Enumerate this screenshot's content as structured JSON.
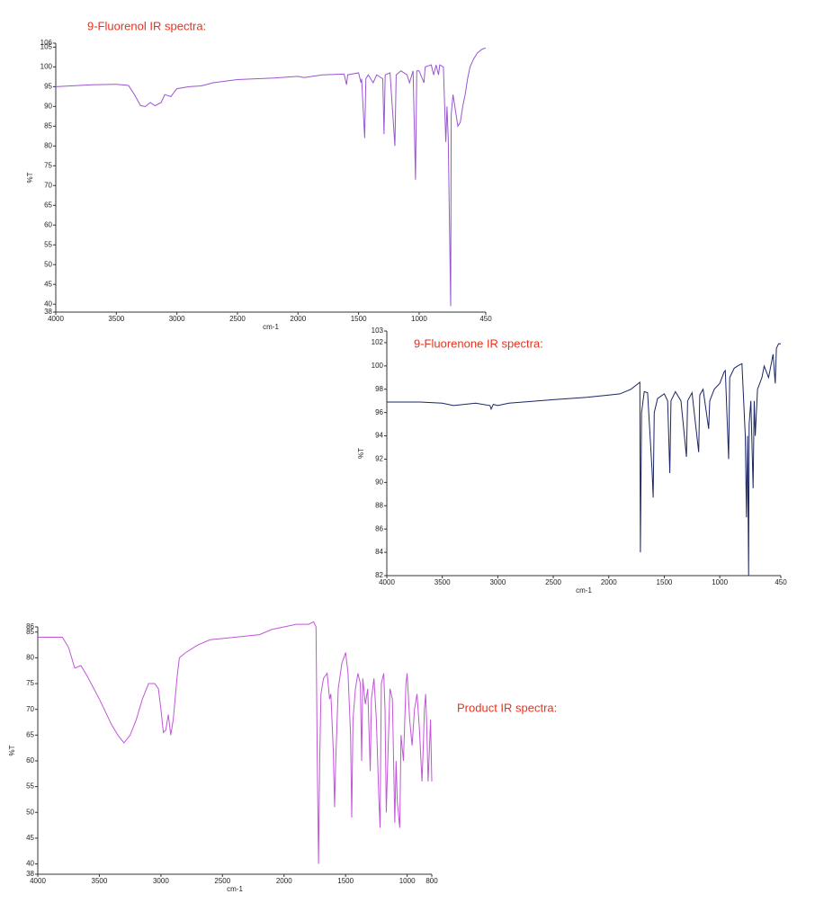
{
  "chart_data": [
    {
      "type": "line",
      "title": "9-Fluorenol IR spectra:",
      "x_label": "cm-1",
      "y_label": "%T",
      "color": "#9a55d1",
      "xlim": [
        4000,
        450
      ],
      "ylim": [
        38,
        106
      ],
      "xticks": [
        4000,
        3500,
        3000,
        2500,
        2000,
        1500,
        1000,
        450
      ],
      "yticks": [
        38,
        40,
        45,
        50,
        55,
        60,
        65,
        70,
        75,
        80,
        85,
        90,
        95,
        100,
        105,
        106
      ],
      "x": [
        4000,
        3700,
        3500,
        3400,
        3350,
        3300,
        3260,
        3220,
        3180,
        3130,
        3100,
        3050,
        3000,
        2900,
        2800,
        2700,
        2500,
        2200,
        2000,
        1950,
        1800,
        1620,
        1600,
        1590,
        1500,
        1480,
        1475,
        1450,
        1440,
        1420,
        1400,
        1380,
        1350,
        1300,
        1290,
        1280,
        1240,
        1200,
        1190,
        1150,
        1100,
        1080,
        1050,
        1030,
        1020,
        1000,
        960,
        950,
        900,
        880,
        860,
        840,
        830,
        800,
        780,
        770,
        760,
        740,
        735,
        720,
        700,
        680,
        660,
        640,
        620,
        600,
        580,
        550,
        520,
        480,
        450
      ],
      "values": [
        95,
        95.5,
        95.6,
        95.3,
        93,
        90.2,
        90,
        91,
        90.2,
        91,
        93,
        92.5,
        94.5,
        95,
        95.2,
        96,
        96.8,
        97.2,
        97.6,
        97.3,
        98,
        98.2,
        95.5,
        98,
        98.5,
        96,
        97,
        82,
        97,
        98,
        97,
        96,
        98,
        97,
        83,
        98,
        98.5,
        80,
        98,
        99,
        98,
        96,
        99,
        71.5,
        99,
        99,
        96,
        100,
        100.5,
        98,
        100.5,
        98,
        100.5,
        100,
        81,
        90,
        82,
        39.5,
        88,
        93,
        89,
        85,
        86,
        90,
        93,
        97,
        100,
        102,
        103.5,
        104.5,
        104.8
      ]
    },
    {
      "type": "line",
      "title": "9-Fluorenone IR spectra:",
      "x_label": "cm-1",
      "y_label": "%T",
      "color": "#1b2563",
      "xlim": [
        4000,
        450
      ],
      "ylim": [
        82,
        103
      ],
      "xticks": [
        4000,
        3500,
        3000,
        2500,
        2000,
        1500,
        1000,
        450
      ],
      "yticks": [
        82,
        84,
        86,
        88,
        90,
        92,
        94,
        96,
        98,
        100,
        102,
        103
      ],
      "x": [
        4000,
        3700,
        3500,
        3400,
        3200,
        3070,
        3060,
        3040,
        3000,
        2900,
        2500,
        2200,
        2000,
        1900,
        1800,
        1720,
        1715,
        1705,
        1680,
        1650,
        1610,
        1600,
        1590,
        1560,
        1500,
        1470,
        1450,
        1440,
        1400,
        1350,
        1300,
        1290,
        1250,
        1190,
        1180,
        1150,
        1100,
        1090,
        1050,
        1000,
        960,
        950,
        920,
        910,
        870,
        840,
        800,
        770,
        760,
        750,
        740,
        735,
        720,
        700,
        690,
        680,
        660,
        620,
        600,
        560,
        520,
        500,
        490,
        470,
        450
      ],
      "values": [
        96.9,
        96.9,
        96.8,
        96.6,
        96.8,
        96.6,
        96.3,
        96.7,
        96.6,
        96.8,
        97.1,
        97.3,
        97.5,
        97.6,
        98,
        98.6,
        84,
        96,
        97.8,
        97.7,
        91,
        88.7,
        96,
        97.2,
        97.6,
        97,
        90.8,
        97,
        97.8,
        97,
        92.2,
        97,
        97.7,
        92.6,
        97.5,
        98,
        94.6,
        97,
        98,
        98.5,
        99.5,
        99.6,
        92,
        99,
        99.8,
        100,
        100.2,
        94,
        87,
        94,
        82,
        95,
        97,
        89.5,
        97,
        94,
        98,
        99,
        100,
        99,
        101,
        98.5,
        101.5,
        101.9,
        101.9
      ]
    },
    {
      "type": "line",
      "title": "Product IR spectra:",
      "x_label": "cm-1",
      "y_label": "%T",
      "color": "#c255d8",
      "xlim": [
        4000,
        800
      ],
      "ylim": [
        38,
        86
      ],
      "xticks": [
        4000,
        3500,
        3000,
        2500,
        2000,
        1500,
        1000,
        800
      ],
      "yticks": [
        38,
        40,
        45,
        50,
        55,
        60,
        65,
        70,
        75,
        80,
        85,
        86
      ],
      "x": [
        4000,
        3800,
        3750,
        3700,
        3650,
        3600,
        3500,
        3400,
        3350,
        3300,
        3250,
        3200,
        3150,
        3100,
        3050,
        3020,
        3000,
        2980,
        2960,
        2940,
        2920,
        2900,
        2870,
        2850,
        2800,
        2700,
        2600,
        2400,
        2200,
        2100,
        2000,
        1900,
        1800,
        1760,
        1740,
        1730,
        1720,
        1710,
        1700,
        1680,
        1650,
        1630,
        1620,
        1600,
        1590,
        1580,
        1560,
        1530,
        1500,
        1480,
        1460,
        1450,
        1440,
        1420,
        1400,
        1380,
        1370,
        1360,
        1340,
        1320,
        1300,
        1290,
        1270,
        1250,
        1230,
        1220,
        1210,
        1190,
        1180,
        1170,
        1160,
        1140,
        1120,
        1100,
        1090,
        1080,
        1060,
        1050,
        1030,
        1010,
        1000,
        980,
        960,
        940,
        920,
        900,
        880,
        870,
        860,
        850,
        840,
        830,
        820,
        810,
        800
      ],
      "values": [
        84,
        84,
        82,
        78,
        78.5,
        76.5,
        72,
        67,
        65,
        63.5,
        65,
        68,
        72,
        75,
        75,
        74,
        70,
        65.5,
        66,
        69,
        65,
        68,
        76,
        80,
        81,
        82.5,
        83.5,
        84,
        84.5,
        85.5,
        86,
        86.5,
        86.5,
        87,
        86,
        60,
        40,
        60,
        73,
        76,
        77,
        72,
        73,
        62,
        51,
        60,
        74,
        79,
        81,
        77,
        65,
        49,
        68,
        74,
        77,
        75,
        60,
        76,
        71,
        74,
        58,
        72,
        76,
        68,
        53,
        47,
        75,
        77,
        70,
        50,
        58,
        74,
        72,
        48,
        60,
        52,
        47,
        65,
        60,
        75,
        77,
        68,
        63,
        70,
        73,
        66,
        56,
        62,
        70,
        73,
        66,
        56,
        62,
        68,
        56
      ]
    }
  ]
}
